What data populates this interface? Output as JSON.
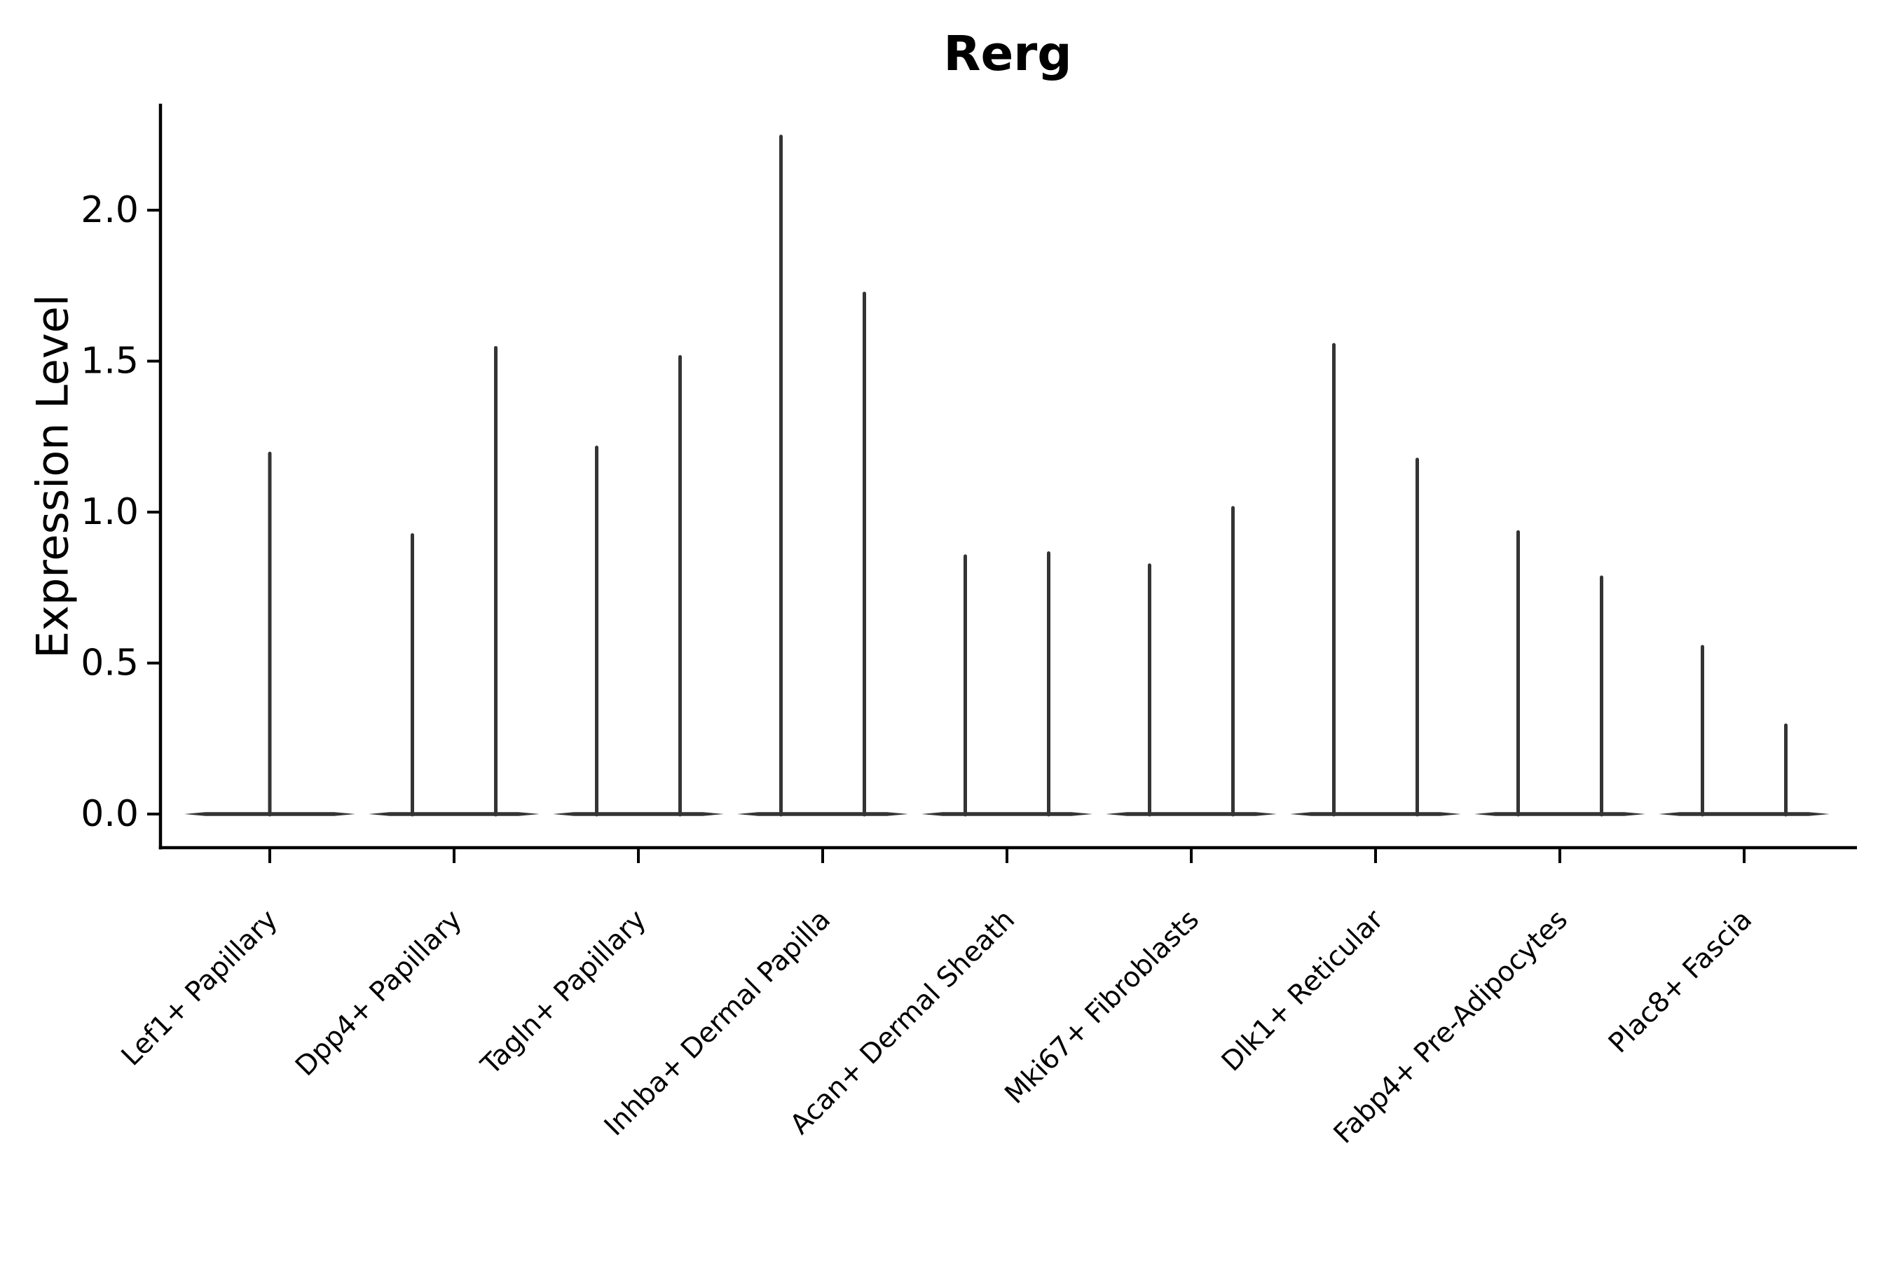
{
  "figure": {
    "title": "Rerg",
    "ylabel": "Expression Level"
  },
  "chart_data": {
    "type": "violin",
    "title": "Rerg",
    "xlabel": "",
    "ylabel": "Expression Level",
    "ylim": [
      -0.11,
      2.35
    ],
    "yticks": [
      0.0,
      0.5,
      1.0,
      1.5,
      2.0
    ],
    "ytick_labels": [
      "0.0",
      "0.5",
      "1.0",
      "1.5",
      "2.0"
    ],
    "grid": false,
    "legend_position": "none",
    "colors": {
      "violin": "#343434",
      "axis": "#000000",
      "background": "#ffffff"
    },
    "categories": [
      "Lef1+ Papillary",
      "Dpp4+ Papillary",
      "Tagln+ Papillary",
      "Inhba+ Dermal Papilla",
      "Acan+ Dermal Sheath",
      "Mki67+ Fibroblasts",
      "Dlk1+ Reticular",
      "Fabp4+ Pre-Adipocytes",
      "Plac8+ Fascia"
    ],
    "series": [
      {
        "category": "Lef1+ Papillary",
        "violin_maxima": [
          1.2
        ]
      },
      {
        "category": "Dpp4+ Papillary",
        "violin_maxima": [
          0.93,
          1.55
        ]
      },
      {
        "category": "Tagln+ Papillary",
        "violin_maxima": [
          1.22,
          1.52
        ]
      },
      {
        "category": "Inhba+ Dermal Papilla",
        "violin_maxima": [
          2.25,
          1.73
        ]
      },
      {
        "category": "Acan+ Dermal Sheath",
        "violin_maxima": [
          0.86,
          0.87
        ]
      },
      {
        "category": "Mki67+ Fibroblasts",
        "violin_maxima": [
          0.83,
          1.02
        ]
      },
      {
        "category": "Dlk1+ Reticular",
        "violin_maxima": [
          1.56,
          1.18
        ]
      },
      {
        "category": "Fabp4+ Pre-Adipocytes",
        "violin_maxima": [
          0.94,
          0.79
        ]
      },
      {
        "category": "Plac8+ Fascia",
        "violin_maxima": [
          0.56,
          0.3
        ]
      }
    ],
    "notes": "Each category shows violin(s) collapsed at 0 with a thin density spike up to the max expression value; most cells have zero expression."
  }
}
